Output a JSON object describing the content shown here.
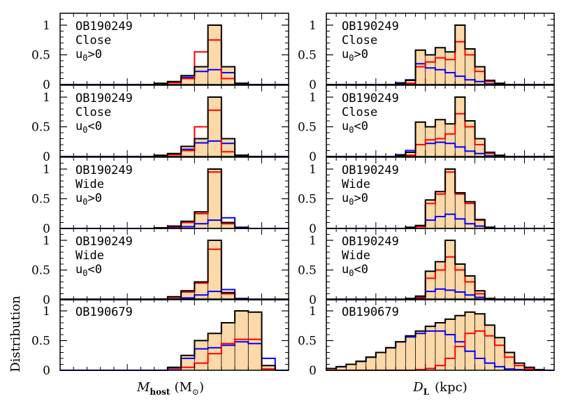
{
  "chart_data": {
    "type": "histogram-grid",
    "ylabel": "Distribution",
    "y_ticks": [
      "0",
      "0.5",
      "1"
    ],
    "ylim": [
      0,
      1.2
    ],
    "colors": {
      "fill": "#fbd9a8",
      "total": "#000000",
      "red": "#ff0000",
      "blue": "#0000ff"
    },
    "columns": [
      {
        "id": "mass",
        "xlabel_main": "M",
        "xlabel_sub": "host",
        "xlabel_unit": "(M",
        "xlabel_unit_sub": "⊙",
        "xlabel_close": ")",
        "nbins": 17
      },
      {
        "id": "dist",
        "xlabel_main": "D",
        "xlabel_sub": "L",
        "xlabel_unit": "(kpc)",
        "nbins": 23
      }
    ],
    "rows": [
      {
        "label": [
          "OB190249",
          "Close",
          "u"
        ],
        "u0": ">0",
        "mass": {
          "bins_start": 7,
          "total": [
            0.02,
            0.05,
            0.15,
            0.3,
            1.0,
            0.3,
            0.02
          ],
          "red": [
            0.01,
            0.03,
            0.1,
            0.55,
            0.75,
            0.1,
            0.0
          ],
          "blue": [
            0.01,
            0.04,
            0.12,
            0.22,
            0.25,
            0.2,
            0.02
          ]
        },
        "dist": {
          "bins_start": 7,
          "total": [
            0.02,
            0.07,
            0.58,
            0.5,
            0.62,
            0.55,
            1.0,
            0.6,
            0.3,
            0.07,
            0.02
          ],
          "red": [
            0.0,
            0.02,
            0.3,
            0.38,
            0.45,
            0.42,
            0.72,
            0.5,
            0.22,
            0.05,
            0.01
          ],
          "blue": [
            0.03,
            0.08,
            0.35,
            0.28,
            0.25,
            0.2,
            0.14,
            0.08,
            0.05,
            0.01,
            0.0
          ]
        }
      },
      {
        "label": [
          "OB190249",
          "Close",
          "u"
        ],
        "u0": "<0",
        "mass": {
          "bins_start": 7,
          "total": [
            0.02,
            0.05,
            0.17,
            0.3,
            1.0,
            0.3,
            0.02
          ],
          "red": [
            0.01,
            0.03,
            0.1,
            0.5,
            0.78,
            0.08,
            0.0
          ],
          "blue": [
            0.01,
            0.04,
            0.12,
            0.23,
            0.26,
            0.22,
            0.02
          ]
        },
        "dist": {
          "bins_start": 7,
          "total": [
            0.02,
            0.07,
            0.58,
            0.5,
            0.62,
            0.55,
            1.0,
            0.6,
            0.3,
            0.07,
            0.02
          ],
          "red": [
            0.0,
            0.02,
            0.2,
            0.28,
            0.3,
            0.38,
            0.72,
            0.5,
            0.2,
            0.05,
            0.01
          ],
          "blue": [
            0.03,
            0.1,
            0.2,
            0.22,
            0.24,
            0.22,
            0.16,
            0.09,
            0.05,
            0.01,
            0.0
          ]
        }
      },
      {
        "label": [
          "OB190249",
          "Wide",
          "u"
        ],
        "u0": ">0",
        "mass": {
          "bins_start": 7,
          "total": [
            0.01,
            0.04,
            0.12,
            0.28,
            1.0,
            0.1,
            0.01
          ],
          "red": [
            0.01,
            0.03,
            0.1,
            0.25,
            0.95,
            0.08,
            0.0
          ],
          "blue": [
            0.0,
            0.01,
            0.03,
            0.08,
            0.14,
            0.18,
            0.02
          ]
        },
        "dist": {
          "bins_start": 8,
          "total": [
            0.02,
            0.05,
            0.48,
            0.62,
            1.0,
            0.6,
            0.45,
            0.15,
            0.02
          ],
          "red": [
            0.0,
            0.03,
            0.42,
            0.58,
            0.95,
            0.58,
            0.42,
            0.14,
            0.01
          ],
          "blue": [
            0.01,
            0.04,
            0.14,
            0.2,
            0.24,
            0.16,
            0.08,
            0.04,
            0.0
          ]
        }
      },
      {
        "label": [
          "OB190249",
          "Wide",
          "u"
        ],
        "u0": "<0",
        "mass": {
          "bins_start": 7,
          "total": [
            0.01,
            0.05,
            0.15,
            0.3,
            1.0,
            0.12,
            0.01
          ],
          "red": [
            0.01,
            0.04,
            0.13,
            0.28,
            0.85,
            0.1,
            0.0
          ],
          "blue": [
            0.0,
            0.01,
            0.03,
            0.08,
            0.14,
            0.17,
            0.02
          ]
        },
        "dist": {
          "bins_start": 8,
          "total": [
            0.02,
            0.06,
            0.48,
            0.64,
            1.0,
            0.6,
            0.4,
            0.15,
            0.02
          ],
          "red": [
            0.0,
            0.03,
            0.36,
            0.5,
            0.72,
            0.5,
            0.3,
            0.1,
            0.01
          ],
          "blue": [
            0.01,
            0.05,
            0.14,
            0.18,
            0.16,
            0.13,
            0.08,
            0.04,
            0.0
          ]
        }
      },
      {
        "label": [
          "OB190679"
        ],
        "u0": "",
        "mass": {
          "bins_start": 8,
          "total": [
            0.05,
            0.25,
            0.5,
            0.62,
            0.8,
            1.0,
            0.98,
            0.08
          ],
          "red": [
            0.01,
            0.05,
            0.12,
            0.28,
            0.45,
            0.52,
            0.52,
            0.02
          ],
          "blue": [
            0.04,
            0.2,
            0.36,
            0.38,
            0.42,
            0.48,
            0.45,
            0.2
          ]
        },
        "dist": {
          "bins_start": 0,
          "total": [
            0.03,
            0.06,
            0.1,
            0.15,
            0.22,
            0.3,
            0.38,
            0.48,
            0.58,
            0.66,
            0.74,
            0.8,
            0.86,
            0.92,
            0.98,
            0.95,
            0.76,
            0.55,
            0.3,
            0.12,
            0.05,
            0.01
          ],
          "red": [
            0.0,
            0.0,
            0.0,
            0.0,
            0.0,
            0.0,
            0.0,
            0.0,
            0.0,
            0.01,
            0.03,
            0.08,
            0.2,
            0.4,
            0.62,
            0.66,
            0.58,
            0.42,
            0.22,
            0.08,
            0.02,
            0.0
          ],
          "blue": [
            0.03,
            0.06,
            0.1,
            0.15,
            0.22,
            0.3,
            0.38,
            0.48,
            0.56,
            0.62,
            0.66,
            0.66,
            0.6,
            0.48,
            0.32,
            0.2,
            0.12,
            0.06,
            0.02,
            0.01,
            0.0,
            0.0
          ]
        }
      }
    ]
  }
}
